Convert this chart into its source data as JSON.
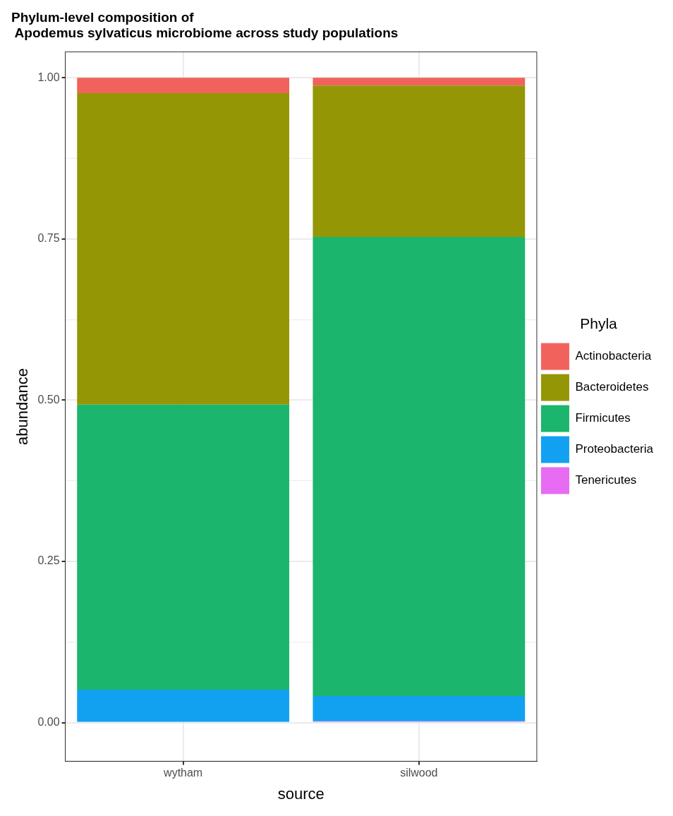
{
  "chart_data": {
    "type": "bar",
    "title": "Phylum-level composition of\n Apodemus sylvaticus microbiome across study populations",
    "xlabel": "source",
    "ylabel": "abundance",
    "legend_title": "Phyla",
    "categories": [
      "wytham",
      "silwood"
    ],
    "stacked": true,
    "ylim": [
      -0.06,
      1.04
    ],
    "yticks": [
      {
        "value": 0,
        "label": "0.00"
      },
      {
        "value": 0.125,
        "label": null
      },
      {
        "value": 0.25,
        "label": "0.25"
      },
      {
        "value": 0.375,
        "label": null
      },
      {
        "value": 0.5,
        "label": "0.50"
      },
      {
        "value": 0.625,
        "label": null
      },
      {
        "value": 0.75,
        "label": "0.75"
      },
      {
        "value": 0.875,
        "label": null
      },
      {
        "value": 1,
        "label": "1.00"
      }
    ],
    "grid": true,
    "legend": "right",
    "series": [
      {
        "name": "Tenericutes",
        "color": "#e76bf3",
        "values": [
          0,
          0.002
        ]
      },
      {
        "name": "Proteobacteria",
        "color": "#12a1f1",
        "values": [
          0.051,
          0.039
        ]
      },
      {
        "name": "Firmicutes",
        "color": "#1bb56d",
        "values": [
          0.442,
          0.712
        ]
      },
      {
        "name": "Bacteroidetes",
        "color": "#959605",
        "values": [
          0.483,
          0.235
        ]
      },
      {
        "name": "Actinobacteria",
        "color": "#f2625c",
        "values": [
          0.024,
          0.012
        ]
      }
    ]
  }
}
